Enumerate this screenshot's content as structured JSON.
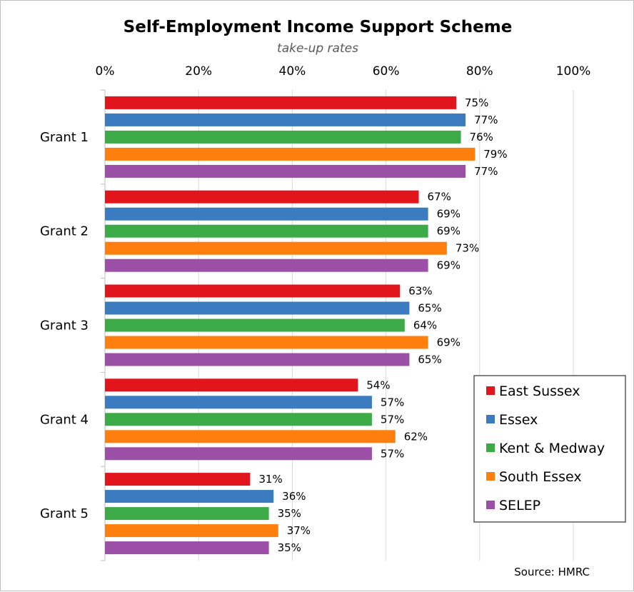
{
  "chart_data": {
    "type": "bar",
    "orientation": "horizontal",
    "title": "Self-Employment Income Support Scheme",
    "subtitle": "take-up rates",
    "source": "Source: HMRC",
    "categories": [
      "Grant 1",
      "Grant 2",
      "Grant 3",
      "Grant 4",
      "Grant 5"
    ],
    "xlim": [
      0,
      100
    ],
    "x_ticks": [
      "0%",
      "20%",
      "40%",
      "60%",
      "80%",
      "100%"
    ],
    "x_tick_values": [
      0,
      20,
      40,
      60,
      80,
      100
    ],
    "grid": true,
    "legend_position": "right",
    "series": [
      {
        "name": "East Sussex",
        "color": "#e3151c",
        "values": [
          75,
          67,
          63,
          54,
          31
        ],
        "labels": [
          "75%",
          "67%",
          "63%",
          "54%",
          "31%"
        ]
      },
      {
        "name": "Essex",
        "color": "#3a7cbf",
        "values": [
          77,
          69,
          65,
          57,
          36
        ],
        "labels": [
          "77%",
          "69%",
          "65%",
          "57%",
          "36%"
        ]
      },
      {
        "name": "Kent & Medway",
        "color": "#3daa48",
        "values": [
          76,
          69,
          64,
          57,
          35
        ],
        "labels": [
          "76%",
          "69%",
          "64%",
          "57%",
          "35%"
        ]
      },
      {
        "name": "South Essex",
        "color": "#ff7f0e",
        "values": [
          79,
          73,
          69,
          62,
          37
        ],
        "labels": [
          "79%",
          "73%",
          "69%",
          "62%",
          "37%"
        ]
      },
      {
        "name": "SELEP",
        "color": "#9b4fa6",
        "values": [
          77,
          69,
          65,
          57,
          35
        ],
        "labels": [
          "77%",
          "69%",
          "65%",
          "57%",
          "35%"
        ]
      }
    ]
  }
}
